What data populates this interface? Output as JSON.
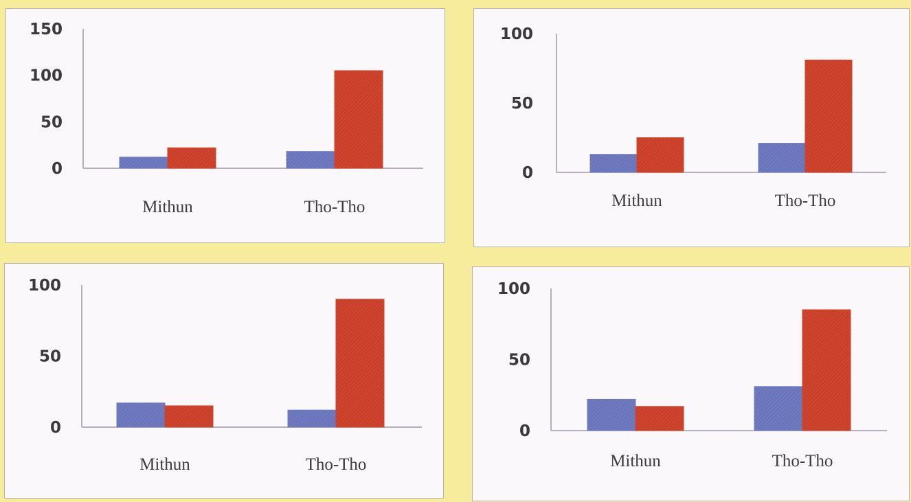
{
  "chart_data": [
    {
      "type": "bar",
      "categories": [
        "Mithun",
        "Tho-Tho"
      ],
      "series": [
        {
          "color": "#6f7ac0",
          "values": [
            12,
            18
          ]
        },
        {
          "color": "#d0442e",
          "values": [
            22,
            105
          ]
        }
      ],
      "yticks": [
        "0",
        "50",
        "100",
        "150"
      ],
      "ylim": [
        0,
        150
      ]
    },
    {
      "type": "bar",
      "categories": [
        "Mithun",
        "Tho-Tho"
      ],
      "series": [
        {
          "color": "#6f7ac0",
          "values": [
            13,
            21
          ]
        },
        {
          "color": "#d0442e",
          "values": [
            25,
            81
          ]
        }
      ],
      "yticks": [
        "0",
        "50",
        "100"
      ],
      "ylim": [
        0,
        100
      ]
    },
    {
      "type": "bar",
      "categories": [
        "Mithun",
        "Tho-Tho"
      ],
      "series": [
        {
          "color": "#6f7ac0",
          "values": [
            17,
            12
          ]
        },
        {
          "color": "#d0442e",
          "values": [
            15,
            90
          ]
        }
      ],
      "yticks": [
        "0",
        "50",
        "100"
      ],
      "ylim": [
        0,
        100
      ]
    },
    {
      "type": "bar",
      "categories": [
        "Mithun",
        "Tho-Tho"
      ],
      "series": [
        {
          "color": "#6f7ac0",
          "values": [
            22,
            31
          ]
        },
        {
          "color": "#d0442e",
          "values": [
            17,
            85
          ]
        }
      ],
      "yticks": [
        "0",
        "50",
        "100"
      ],
      "ylim": [
        0,
        100
      ]
    }
  ]
}
